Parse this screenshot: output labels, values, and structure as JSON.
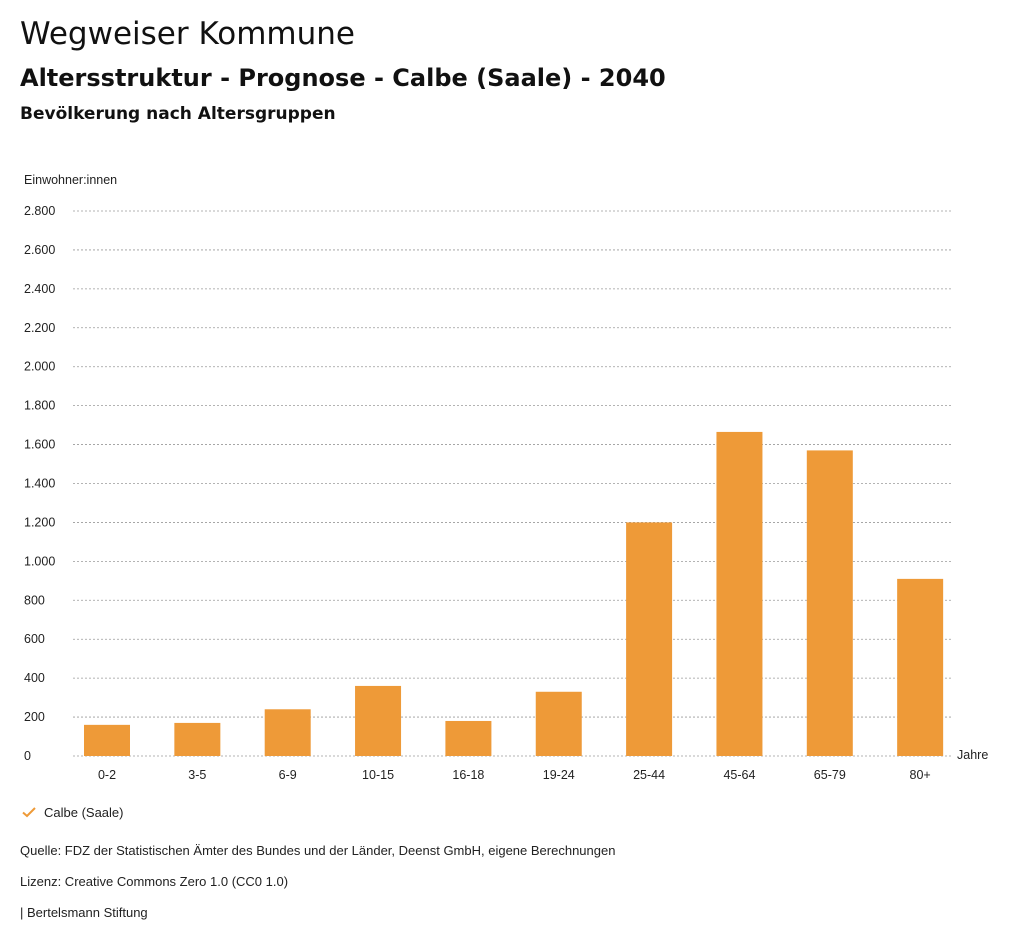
{
  "header": {
    "title": "Wegweiser Kommune",
    "subtitle": "Altersstruktur - Prognose - Calbe (Saale) - 2040",
    "heading": "Bevölkerung nach Altersgruppen"
  },
  "chart_data": {
    "type": "bar",
    "ylabel": "Einwohner:innen",
    "xlabel": "Jahre",
    "categories": [
      "0-2",
      "3-5",
      "6-9",
      "10-15",
      "16-18",
      "19-24",
      "25-44",
      "45-64",
      "65-79",
      "80+"
    ],
    "series": [
      {
        "name": "Calbe (Saale)",
        "values": [
          160,
          170,
          240,
          360,
          180,
          330,
          1200,
          1665,
          1570,
          910
        ]
      }
    ],
    "ylim": [
      0,
      2800
    ],
    "yticks": [
      0,
      200,
      400,
      600,
      800,
      1000,
      1200,
      1400,
      1600,
      1800,
      2000,
      2200,
      2400,
      2600,
      2800
    ],
    "ytick_labels": [
      "0",
      "200",
      "400",
      "600",
      "800",
      "1.000",
      "1.200",
      "1.400",
      "1.600",
      "1.800",
      "2.000",
      "2.200",
      "2.400",
      "2.600",
      "2.800"
    ],
    "grid": true,
    "color": "#ee9a38"
  },
  "legend": {
    "label": "Calbe (Saale)"
  },
  "footer": {
    "source": "Quelle: FDZ der Statistischen Ämter des Bundes und der Länder, Deenst GmbH, eigene Berechnungen",
    "license": "Lizenz: Creative Commons Zero 1.0 (CC0 1.0)",
    "publisher": "| Bertelsmann Stiftung"
  }
}
